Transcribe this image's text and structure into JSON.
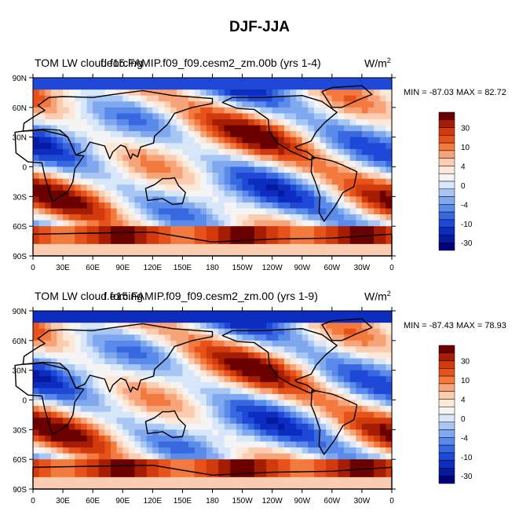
{
  "title": "DJF-JJA",
  "panels": [
    {
      "left_title": "TOM LW cloud forcing",
      "center_title": "f.e15.FAMIP.f09_f09.cesm2_zm.00b (yrs 1-4)",
      "units": "W/m",
      "units_exp": "2",
      "minmax": "MIN = -87.03 MAX =  82.72"
    },
    {
      "left_title": "TOM LW cloud forcing",
      "center_title": "f.e15.FAMIP.f09_f09.cesm2_zm.00 (yrs 1-9)",
      "units": "W/m",
      "units_exp": "2",
      "minmax": "MIN = -87.43 MAX =  78.93"
    }
  ],
  "lat_labels": [
    "90N",
    "60N",
    "30N",
    "0",
    "30S",
    "60S",
    "90S"
  ],
  "lon_labels": [
    "0",
    "30E",
    "60E",
    "90E",
    "120E",
    "150E",
    "180",
    "150W",
    "120W",
    "90W",
    "60W",
    "30W",
    "0"
  ],
  "colorbar": {
    "labels": [
      "30",
      "10",
      "4",
      "0",
      "-4",
      "-10",
      "-30"
    ],
    "colors": [
      "#6b0000",
      "#a51d02",
      "#d03a0c",
      "#e6521a",
      "#f27a3e",
      "#f8a47a",
      "#fbcdb0",
      "#fde8d8",
      "#f4f4f4",
      "#d8e6fa",
      "#a8c6f4",
      "#7fa8ee",
      "#5a8aea",
      "#3768e0",
      "#1f48d6",
      "#0d2cc0",
      "#061aa0",
      "#00007a"
    ]
  }
}
